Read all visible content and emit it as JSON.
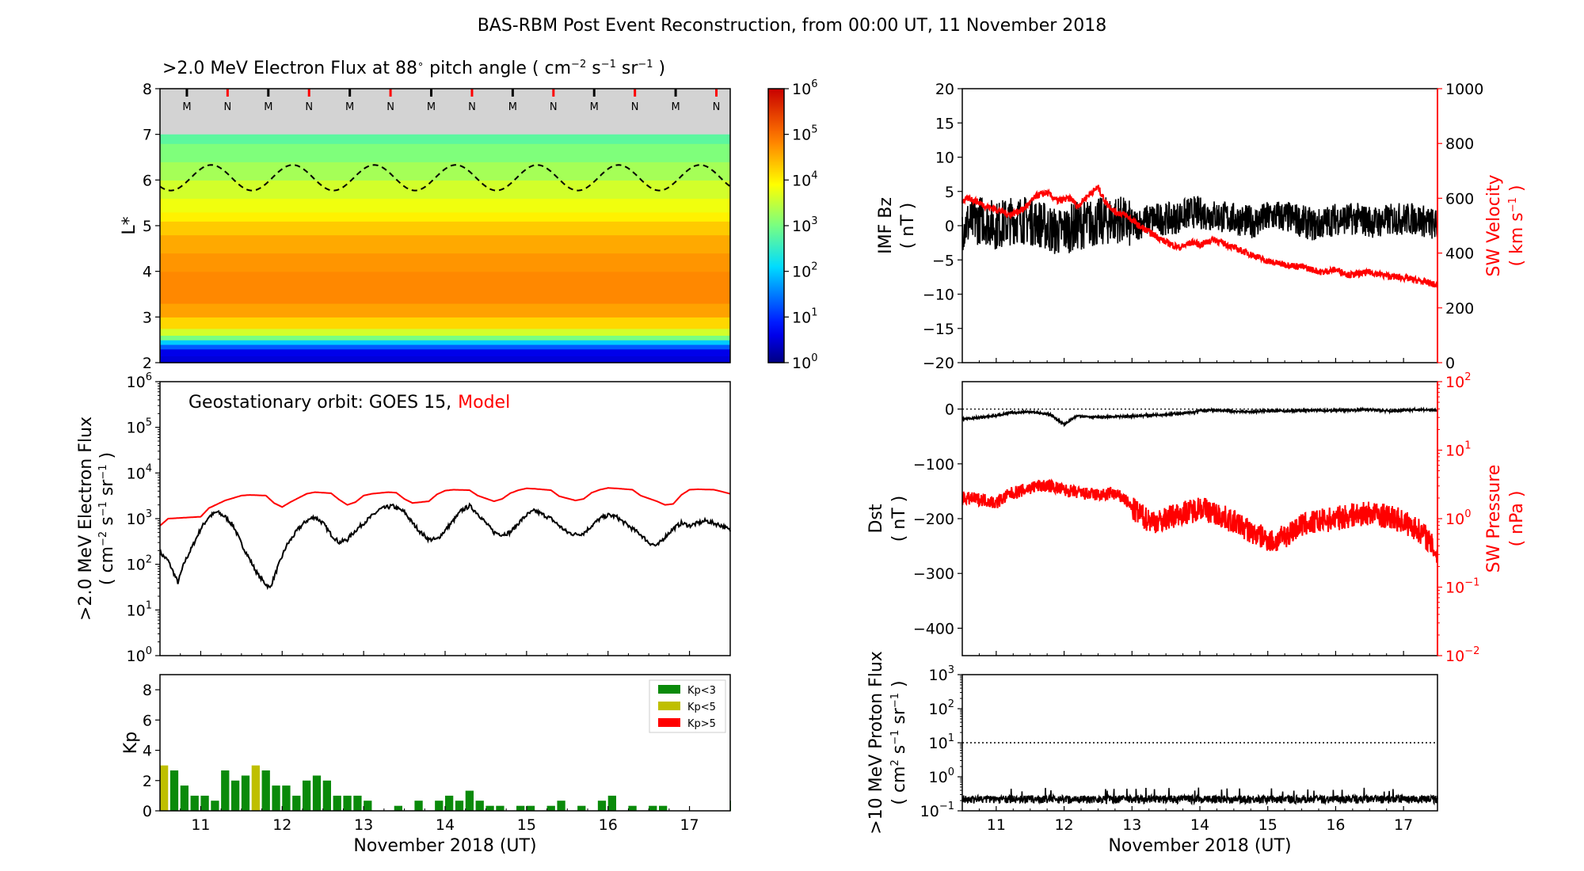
{
  "figure_title": "BAS-RBM Post Event Reconstruction, from 00:00 UT, 11 November 2018",
  "colors": {
    "model": "#ff0000",
    "obs": "#000000",
    "kp_low": "#0a8a0a",
    "kp_mid": "#bfbf00",
    "kp_high": "#ff0000",
    "mask": "#d3d3d3"
  },
  "chart_data": [
    {
      "id": "flux_map",
      "type": "heatmap",
      "title": ">2.0 MeV Electron Flux at 88° pitch angle (cm⁻² s⁻¹ sr⁻¹)",
      "title_parts": [
        ">2.0 MeV Electron Flux at 88",
        "∘",
        " pitch angle ( cm",
        "−2",
        " s",
        "−1",
        " sr",
        "−1",
        " )"
      ],
      "ylabel": "L*",
      "ylim": [
        2,
        8
      ],
      "xlim": [
        10.5,
        17.5
      ],
      "yticks": [
        2,
        3,
        4,
        5,
        6,
        7,
        8
      ],
      "colorbar": {
        "ticks": [
          "10",
          "10",
          "10",
          "10",
          "10",
          "10",
          "10"
        ],
        "exps": [
          "0",
          "1",
          "2",
          "3",
          "4",
          "5",
          "6"
        ],
        "range_log": [
          0,
          6
        ]
      },
      "rows": [
        {
          "L": 2.0,
          "log_flux": 0.5
        },
        {
          "L": 2.15,
          "log_flux": 0.6
        },
        {
          "L": 2.3,
          "log_flux": 1.3
        },
        {
          "L": 2.4,
          "log_flux": 2.0
        },
        {
          "L": 2.5,
          "log_flux": 3.0
        },
        {
          "L": 2.6,
          "log_flux": 3.6
        },
        {
          "L": 2.75,
          "log_flux": 4.2
        },
        {
          "L": 3.0,
          "log_flux": 4.6
        },
        {
          "L": 3.3,
          "log_flux": 4.8
        },
        {
          "L": 3.6,
          "log_flux": 4.8
        },
        {
          "L": 4.0,
          "log_flux": 4.7
        },
        {
          "L": 4.4,
          "log_flux": 4.55
        },
        {
          "L": 4.8,
          "log_flux": 4.3
        },
        {
          "L": 5.1,
          "log_flux": 4.0
        },
        {
          "L": 5.3,
          "log_flux": 3.8
        },
        {
          "L": 5.6,
          "log_flux": 3.6
        },
        {
          "L": 6.0,
          "log_flux": 3.3
        },
        {
          "L": 6.4,
          "log_flux": 3.05
        },
        {
          "L": 6.8,
          "log_flux": 2.8
        },
        {
          "L": 7.0,
          "log_flux": 2.7
        }
      ],
      "mask_above_L": 7,
      "geo_orbit_L": {
        "mean": 6.05,
        "amplitude": 0.28,
        "period_days": 1.0,
        "peak_day_offset": 0.13
      },
      "mn_markers": {
        "start": 10.83,
        "step": 0.5,
        "labels": [
          "M",
          "N",
          "M",
          "N",
          "M",
          "N",
          "M",
          "N",
          "M",
          "N",
          "M",
          "N",
          "M",
          "N"
        ]
      }
    },
    {
      "id": "geo_flux",
      "type": "line",
      "ylabel_lines": [
        ">2.0 MeV Electron Flux",
        "( cm⁻² s⁻¹ sr⁻¹ )"
      ],
      "ylabel_l1": ">2.0 MeV Electron Flux",
      "ylabel_l2a": "( cm",
      "ylabel_l2b": "−2",
      "ylabel_l2c": " s",
      "ylabel_l2d": "−1",
      "ylabel_l2e": " sr",
      "ylabel_l2f": "−1",
      "ylabel_l2g": " )",
      "annotation": "Geostationary orbit:   GOES 15,",
      "annotation_model": "Model",
      "yscale": "log",
      "ylim": [
        1,
        1000000
      ],
      "xlim": [
        10.5,
        17.5
      ],
      "series": [
        {
          "name": "GOES 15",
          "x": [
            10.5,
            10.6,
            10.72,
            10.8,
            10.9,
            11.0,
            11.1,
            11.2,
            11.3,
            11.4,
            11.5,
            11.6,
            11.7,
            11.78,
            11.85,
            11.95,
            12.05,
            12.2,
            12.3,
            12.4,
            12.5,
            12.6,
            12.7,
            12.8,
            12.9,
            13.0,
            13.2,
            13.35,
            13.5,
            13.6,
            13.7,
            13.8,
            13.9,
            14.0,
            14.1,
            14.2,
            14.3,
            14.4,
            14.5,
            14.6,
            14.7,
            14.8,
            14.9,
            15.0,
            15.1,
            15.3,
            15.4,
            15.5,
            15.6,
            15.7,
            15.8,
            15.9,
            16.0,
            16.1,
            16.3,
            16.4,
            16.5,
            16.6,
            16.7,
            16.8,
            16.9,
            17.0,
            17.2,
            17.4,
            17.5
          ],
          "y": [
            180,
            120,
            40,
            110,
            250,
            600,
            1100,
            1400,
            1100,
            700,
            280,
            130,
            60,
            40,
            30,
            90,
            250,
            600,
            900,
            1100,
            800,
            450,
            300,
            350,
            550,
            800,
            1600,
            1900,
            1400,
            800,
            500,
            350,
            350,
            550,
            900,
            1500,
            1900,
            1300,
            800,
            500,
            450,
            500,
            800,
            1200,
            1500,
            1000,
            700,
            500,
            450,
            480,
            700,
            1000,
            1200,
            1100,
            600,
            450,
            300,
            250,
            400,
            600,
            800,
            700,
            900,
            700,
            550
          ]
        },
        {
          "name": "Model",
          "x": [
            10.5,
            10.6,
            10.8,
            11.0,
            11.1,
            11.3,
            11.5,
            11.6,
            11.8,
            11.9,
            12.0,
            12.1,
            12.3,
            12.4,
            12.6,
            12.7,
            12.8,
            12.9,
            13.0,
            13.1,
            13.3,
            13.4,
            13.5,
            13.6,
            13.8,
            13.9,
            14.0,
            14.1,
            14.3,
            14.4,
            14.6,
            14.7,
            14.8,
            14.9,
            15.0,
            15.1,
            15.3,
            15.4,
            15.6,
            15.7,
            15.8,
            15.9,
            16.0,
            16.1,
            16.3,
            16.4,
            16.6,
            16.7,
            16.8,
            16.9,
            17.0,
            17.1,
            17.3,
            17.4,
            17.5
          ],
          "y": [
            700,
            1000,
            1050,
            1100,
            1700,
            2500,
            3200,
            3300,
            3200,
            2200,
            1800,
            2300,
            3500,
            3800,
            3600,
            2600,
            2000,
            2300,
            3200,
            3500,
            3800,
            3700,
            2700,
            2200,
            2400,
            3400,
            4100,
            4300,
            4200,
            3200,
            2400,
            2700,
            3600,
            4200,
            4600,
            4500,
            4200,
            3100,
            2500,
            2700,
            3700,
            4300,
            4700,
            4600,
            4300,
            3200,
            2400,
            2000,
            2100,
            3300,
            4300,
            4400,
            4300,
            3900,
            3500
          ]
        }
      ]
    },
    {
      "id": "kp",
      "type": "bar",
      "ylabel": "Kp",
      "ylim": [
        0,
        9
      ],
      "xlim": [
        10.5,
        17.5
      ],
      "yticks": [
        0,
        2,
        4,
        6,
        8
      ],
      "xlabel": "November 2018 (UT)",
      "xticks": [
        "11",
        "12",
        "13",
        "14",
        "15",
        "16",
        "17"
      ],
      "legend": [
        "Kp<3",
        "Kp<5",
        "Kp>5"
      ],
      "legend_position": "top-right",
      "bar_width_days": 0.1,
      "bars": [
        {
          "t": 10.5,
          "kp": 3.0
        },
        {
          "t": 10.625,
          "kp": 2.67
        },
        {
          "t": 10.75,
          "kp": 1.67
        },
        {
          "t": 10.875,
          "kp": 1.0
        },
        {
          "t": 11.0,
          "kp": 1.0
        },
        {
          "t": 11.125,
          "kp": 0.67
        },
        {
          "t": 11.25,
          "kp": 2.67
        },
        {
          "t": 11.375,
          "kp": 2.0
        },
        {
          "t": 11.5,
          "kp": 2.33
        },
        {
          "t": 11.625,
          "kp": 3.0
        },
        {
          "t": 11.75,
          "kp": 2.67
        },
        {
          "t": 11.875,
          "kp": 1.67
        },
        {
          "t": 12.0,
          "kp": 1.67
        },
        {
          "t": 12.125,
          "kp": 1.0
        },
        {
          "t": 12.25,
          "kp": 2.0
        },
        {
          "t": 12.375,
          "kp": 2.33
        },
        {
          "t": 12.5,
          "kp": 2.0
        },
        {
          "t": 12.625,
          "kp": 1.0
        },
        {
          "t": 12.75,
          "kp": 1.0
        },
        {
          "t": 12.875,
          "kp": 1.0
        },
        {
          "t": 13.0,
          "kp": 0.67
        },
        {
          "t": 13.375,
          "kp": 0.33
        },
        {
          "t": 13.625,
          "kp": 0.67
        },
        {
          "t": 13.875,
          "kp": 0.67
        },
        {
          "t": 14.0,
          "kp": 1.0
        },
        {
          "t": 14.125,
          "kp": 0.67
        },
        {
          "t": 14.25,
          "kp": 1.33
        },
        {
          "t": 14.375,
          "kp": 0.67
        },
        {
          "t": 14.5,
          "kp": 0.33
        },
        {
          "t": 14.625,
          "kp": 0.33
        },
        {
          "t": 14.875,
          "kp": 0.33
        },
        {
          "t": 15.0,
          "kp": 0.33
        },
        {
          "t": 15.25,
          "kp": 0.33
        },
        {
          "t": 15.375,
          "kp": 0.67
        },
        {
          "t": 15.625,
          "kp": 0.33
        },
        {
          "t": 15.875,
          "kp": 0.67
        },
        {
          "t": 16.0,
          "kp": 1.0
        },
        {
          "t": 16.25,
          "kp": 0.33
        },
        {
          "t": 16.5,
          "kp": 0.33
        },
        {
          "t": 16.625,
          "kp": 0.33
        },
        {
          "t": 17.5,
          "kp": 0.67
        }
      ]
    },
    {
      "id": "imf_sw",
      "type": "line",
      "ylabel": "IMF Bz",
      "ylabel_unit": "( nT )",
      "ylim": [
        -20,
        20
      ],
      "yticks": [
        -20,
        -15,
        -10,
        -5,
        0,
        5,
        10,
        15,
        20
      ],
      "y2label": "SW Velocity",
      "y2label_unit": "( km s",
      "y2label_exp": "−1",
      "y2lim": [
        0,
        1000
      ],
      "y2ticks": [
        0,
        200,
        400,
        600,
        800,
        1000
      ],
      "xlim": [
        10.5,
        17.5
      ],
      "series": [
        {
          "name": "IMF Bz",
          "x": [
            10.5,
            10.8,
            11.0,
            11.3,
            11.6,
            11.9,
            12.2,
            12.5,
            12.8,
            13.0,
            13.3,
            13.6,
            13.9,
            14.2,
            14.5,
            14.8,
            15.1,
            15.4,
            15.7,
            16.0,
            16.3,
            16.6,
            16.9,
            17.2,
            17.5
          ],
          "y": [
            0,
            1,
            0,
            1,
            0.5,
            -1,
            0,
            0.5,
            1,
            0,
            1,
            1,
            2,
            1.5,
            1,
            0.5,
            1.5,
            1,
            0,
            1,
            1,
            0.5,
            1,
            1,
            0
          ],
          "noise": 3
        },
        {
          "name": "SW Velocity",
          "axis": "y2",
          "x": [
            10.5,
            10.6,
            10.7,
            10.85,
            11.0,
            11.2,
            11.4,
            11.6,
            11.75,
            11.9,
            12.1,
            12.2,
            12.35,
            12.5,
            12.6,
            12.75,
            12.9,
            13.0,
            13.1,
            13.3,
            13.5,
            13.7,
            13.9,
            14.0,
            14.2,
            14.4,
            14.6,
            14.8,
            15.0,
            15.2,
            15.5,
            15.8,
            16.0,
            16.2,
            16.5,
            16.8,
            17.0,
            17.2,
            17.4,
            17.5
          ],
          "y": [
            590,
            600,
            590,
            570,
            560,
            540,
            560,
            610,
            620,
            590,
            600,
            570,
            610,
            640,
            590,
            550,
            540,
            520,
            500,
            470,
            440,
            420,
            440,
            430,
            450,
            430,
            410,
            390,
            370,
            360,
            350,
            330,
            340,
            320,
            330,
            315,
            310,
            300,
            290,
            280
          ],
          "noise": 12
        }
      ]
    },
    {
      "id": "dst_pressure",
      "type": "line",
      "ylabel": "Dst",
      "ylabel_unit": "( nT )",
      "ylim": [
        -450,
        50
      ],
      "yticks": [
        -400,
        -300,
        -200,
        -100,
        0
      ],
      "y2label": "SW Pressure",
      "y2label_unit": "( nPa )",
      "y2scale": "log",
      "y2lim": [
        0.01,
        100
      ],
      "xlim": [
        10.5,
        17.5
      ],
      "series": [
        {
          "name": "Dst",
          "x": [
            10.5,
            10.8,
            11.0,
            11.2,
            11.5,
            11.8,
            12.0,
            12.2,
            12.5,
            12.8,
            13.0,
            13.3,
            13.6,
            13.9,
            14.0,
            14.2,
            14.5,
            14.8,
            15.0,
            15.3,
            15.6,
            15.9,
            16.2,
            16.5,
            16.8,
            17.0,
            17.3,
            17.5
          ],
          "y": [
            -18,
            -15,
            -12,
            -7,
            -5,
            -10,
            -28,
            -12,
            -15,
            -14,
            -13,
            -11,
            -9,
            -6,
            -3,
            -2,
            -4,
            -5,
            -3,
            -4,
            -2,
            -3,
            -2,
            -1,
            -4,
            -2,
            -1,
            -3
          ],
          "noise": 2
        },
        {
          "name": "SW Pressure",
          "axis": "y2",
          "x": [
            10.5,
            10.8,
            11.0,
            11.2,
            11.4,
            11.6,
            11.8,
            12.0,
            12.3,
            12.6,
            12.7,
            12.9,
            13.0,
            13.2,
            13.4,
            13.7,
            13.9,
            14.0,
            14.2,
            14.4,
            14.6,
            14.8,
            15.0,
            15.1,
            15.3,
            15.5,
            15.7,
            16.0,
            16.2,
            16.5,
            16.7,
            16.9,
            17.1,
            17.3,
            17.5
          ],
          "y": [
            2.0,
            1.9,
            1.7,
            2.3,
            2.6,
            3.0,
            3.0,
            2.6,
            2.3,
            2.2,
            2.4,
            1.9,
            1.4,
            1.0,
            0.9,
            1.2,
            1.3,
            1.5,
            1.2,
            1.0,
            0.8,
            0.6,
            0.5,
            0.45,
            0.6,
            0.8,
            0.9,
            1.0,
            1.1,
            1.2,
            1.1,
            1.0,
            0.8,
            0.6,
            0.3
          ],
          "noise": 0.12
        }
      ]
    },
    {
      "id": "proton_flux",
      "type": "line",
      "ylabel": ">10 MeV Proton Flux",
      "ylabel_unit": "( cm",
      "ylabel_exps": [
        "2",
        "−1",
        "−1"
      ],
      "yscale": "log",
      "ylim": [
        0.1,
        1000
      ],
      "xlabel": "November 2018 (UT)",
      "xticks": [
        "11",
        "12",
        "13",
        "14",
        "15",
        "16",
        "17"
      ],
      "xlim": [
        10.5,
        17.5
      ],
      "threshold": 10,
      "series": [
        {
          "name": ">10 MeV Proton Flux",
          "base": 0.2,
          "noise": 0.06
        }
      ]
    }
  ]
}
